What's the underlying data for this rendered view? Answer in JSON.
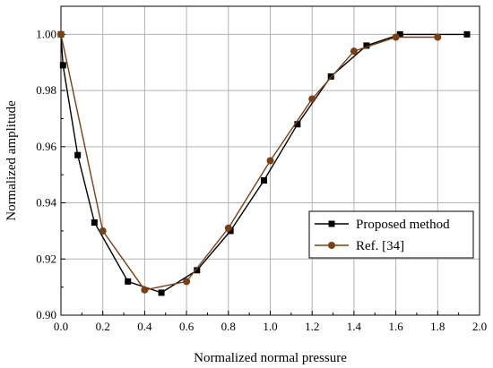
{
  "chart_data": {
    "type": "line",
    "title": "",
    "xlabel": "Normalized normal pressure",
    "ylabel": "Normalized amplitude",
    "xlim": [
      0.0,
      2.0
    ],
    "ylim": [
      0.9,
      1.01
    ],
    "x_ticks": [
      "0.0",
      "0.2",
      "0.4",
      "0.6",
      "0.8",
      "1.0",
      "1.2",
      "1.4",
      "1.6",
      "1.8",
      "2.0"
    ],
    "y_ticks": [
      "0.90",
      "0.92",
      "0.94",
      "0.96",
      "0.98",
      "1.00"
    ],
    "x_tick_values": [
      0.0,
      0.2,
      0.4,
      0.6,
      0.8,
      1.0,
      1.2,
      1.4,
      1.6,
      1.8,
      2.0
    ],
    "y_tick_values": [
      0.9,
      0.92,
      0.94,
      0.96,
      0.98,
      1.0
    ],
    "grid": true,
    "legend_position": "bottom-right",
    "series": [
      {
        "name": "Proposed method",
        "color": "#000000",
        "marker": "square",
        "points": [
          [
            0.0,
            1.0
          ],
          [
            0.01,
            0.989
          ],
          [
            0.08,
            0.957
          ],
          [
            0.16,
            0.933
          ],
          [
            0.32,
            0.912
          ],
          [
            0.48,
            0.908
          ],
          [
            0.65,
            0.916
          ],
          [
            0.81,
            0.93
          ],
          [
            0.97,
            0.948
          ],
          [
            1.13,
            0.968
          ],
          [
            1.29,
            0.985
          ],
          [
            1.46,
            0.996
          ],
          [
            1.62,
            1.0
          ],
          [
            1.94,
            1.0
          ]
        ]
      },
      {
        "name": "Ref. [34]",
        "color": "#7b3f14",
        "marker": "circle",
        "points": [
          [
            0.0,
            1.0
          ],
          [
            0.2,
            0.93
          ],
          [
            0.4,
            0.909
          ],
          [
            0.6,
            0.912
          ],
          [
            0.8,
            0.931
          ],
          [
            1.0,
            0.955
          ],
          [
            1.2,
            0.977
          ],
          [
            1.4,
            0.994
          ],
          [
            1.6,
            0.999
          ],
          [
            1.8,
            0.999
          ]
        ]
      }
    ]
  }
}
